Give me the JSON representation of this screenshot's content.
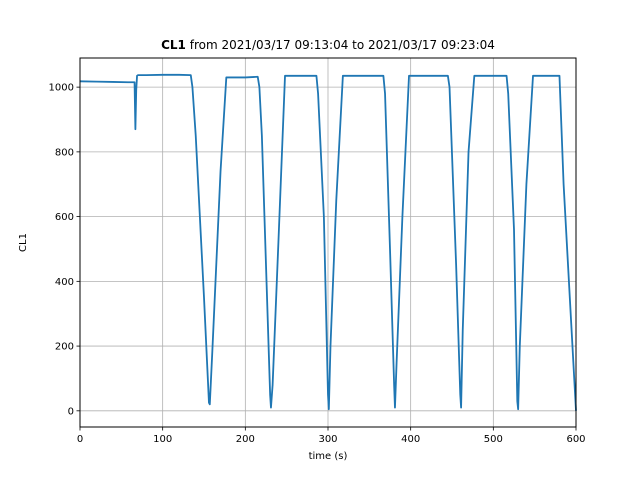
{
  "chart_data": {
    "type": "line",
    "title_bold": "CL1",
    "title_rest": " from 2021/03/17 09:13:04 to 2021/03/17 09:23:04",
    "xlabel": "time (s)",
    "ylabel": "CL1",
    "xlim": [
      0,
      600
    ],
    "ylim": [
      -50,
      1090
    ],
    "xticks": [
      0,
      100,
      200,
      300,
      400,
      500,
      600
    ],
    "yticks": [
      0,
      200,
      400,
      600,
      800,
      1000
    ],
    "grid": true,
    "series": [
      {
        "color": "#1f77b4",
        "x": [
          0,
          20,
          40,
          60,
          66,
          67,
          68,
          69,
          70,
          80,
          100,
          120,
          134,
          136,
          140,
          150,
          156,
          157,
          160,
          170,
          177,
          185,
          200,
          215,
          217,
          220,
          230,
          231,
          233,
          240,
          248,
          260,
          280,
          286,
          288,
          295,
          300,
          301,
          303,
          310,
          318,
          330,
          350,
          367,
          369,
          375,
          380,
          381,
          383,
          390,
          398,
          420,
          445,
          447,
          455,
          460,
          461,
          463,
          470,
          477,
          490,
          505,
          516,
          518,
          525,
          529,
          530,
          532,
          540,
          548,
          560,
          575,
          580,
          585,
          600
        ],
        "y": [
          1018,
          1017,
          1016,
          1015,
          1015,
          870,
          990,
          1035,
          1037,
          1037,
          1038,
          1038,
          1037,
          1000,
          850,
          350,
          25,
          20,
          180,
          740,
          1030,
          1030,
          1030,
          1032,
          1000,
          850,
          50,
          10,
          80,
          520,
          1035,
          1035,
          1035,
          1035,
          980,
          600,
          50,
          5,
          200,
          650,
          1035,
          1035,
          1035,
          1035,
          980,
          500,
          80,
          10,
          150,
          600,
          1035,
          1035,
          1035,
          1000,
          450,
          50,
          10,
          250,
          800,
          1035,
          1035,
          1035,
          1035,
          980,
          560,
          30,
          5,
          200,
          700,
          1035,
          1035,
          1035,
          1035,
          700,
          0
        ]
      }
    ]
  }
}
